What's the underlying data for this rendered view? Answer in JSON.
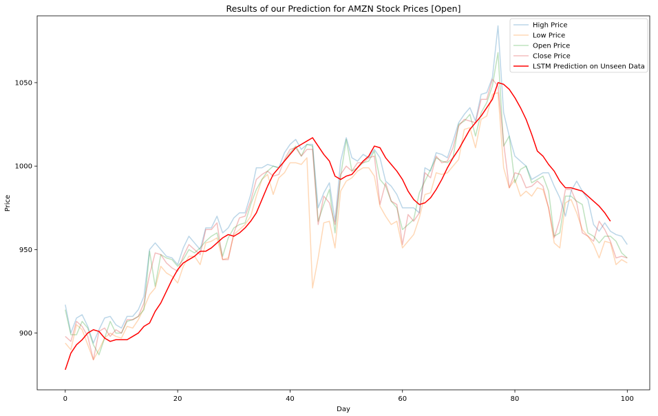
{
  "chart_data": {
    "type": "line",
    "title": "Results of our Prediction for AMZN Stock Prices [Open]",
    "xlabel": "Day",
    "ylabel": "Price",
    "xlim": [
      -5,
      104
    ],
    "ylim": [
      866,
      1090
    ],
    "xticks": [
      0,
      20,
      40,
      60,
      80,
      100
    ],
    "yticks": [
      900,
      950,
      1000,
      1050
    ],
    "grid": false,
    "legend_position": "top-right",
    "colors": {
      "high": "#1f77b4",
      "low": "#ff7f0e",
      "open": "#2ca02c",
      "close": "#d62728",
      "prediction": "#ff0000"
    },
    "series": [
      {
        "key": "high",
        "name": "High Price",
        "opacity": 0.3,
        "values": [
          917,
          900,
          909,
          911,
          904,
          894,
          902,
          909,
          910,
          905,
          903,
          910,
          910,
          914,
          922,
          950,
          954,
          950,
          946,
          945,
          941,
          951,
          958,
          954,
          950,
          963,
          963,
          970,
          960,
          963,
          969,
          972,
          972,
          983,
          999,
          999,
          1001,
          1000,
          999,
          1008,
          1013,
          1016,
          1010,
          1013,
          1013,
          975,
          984,
          990,
          967,
          1003,
          1017,
          1005,
          1003,
          1007,
          1005,
          1010,
          1005,
          991,
          988,
          983,
          975,
          975,
          975,
          972,
          999,
          997,
          1008,
          1007,
          1005,
          1015,
          1026,
          1031,
          1035,
          1027,
          1043,
          1044,
          1053,
          1084,
          1032,
          1018,
          1006,
          1003,
          1000,
          992,
          994,
          996,
          996,
          988,
          981,
          970,
          985,
          991,
          985,
          980,
          965,
          961,
          966,
          961,
          959,
          958,
          953
        ]
      },
      {
        "key": "low",
        "name": "Low Price",
        "opacity": 0.3,
        "values": [
          894,
          890,
          905,
          902,
          893,
          884,
          890,
          897,
          900,
          898,
          897,
          904,
          903,
          908,
          915,
          923,
          927,
          940,
          936,
          934,
          930,
          940,
          946,
          946,
          941,
          954,
          955,
          957,
          944,
          945,
          959,
          962,
          965,
          970,
          982,
          992,
          995,
          983,
          993,
          996,
          1002,
          1002,
          1001,
          1005,
          927,
          945,
          966,
          967,
          951,
          985,
          991,
          993,
          997,
          999,
          999,
          994,
          976,
          970,
          965,
          967,
          951,
          955,
          959,
          969,
          983,
          984,
          996,
          995,
          996,
          1000,
          1004,
          1022,
          1023,
          1011,
          1028,
          1030,
          1043,
          1044,
          999,
          987,
          992,
          982,
          985,
          982,
          987,
          986,
          975,
          954,
          951,
          978,
          980,
          972,
          962,
          958,
          953,
          945,
          955,
          954,
          941,
          944,
          942
        ]
      },
      {
        "key": "open",
        "name": "Open Price",
        "opacity": 0.3,
        "values": [
          914,
          899,
          899,
          907,
          903,
          893,
          887,
          897,
          907,
          900,
          900,
          907,
          908,
          910,
          914,
          949,
          928,
          947,
          945,
          944,
          940,
          944,
          950,
          948,
          951,
          955,
          958,
          960,
          946,
          957,
          963,
          965,
          966,
          977,
          986,
          992,
          997,
          1000,
          999,
          1003,
          1008,
          1012,
          1006,
          1013,
          1012,
          967,
          977,
          986,
          960,
          994,
          1016,
          997,
          999,
          1002,
          1003,
          1009,
          992,
          988,
          979,
          975,
          962,
          965,
          968,
          984,
          991,
          998,
          1005,
          1003,
          1002,
          1005,
          1025,
          1027,
          1031,
          1018,
          1032,
          1038,
          1048,
          1068,
          1012,
          1018,
          990,
          998,
          1000,
          990,
          992,
          994,
          985,
          958,
          960,
          982,
          982,
          979,
          977,
          960,
          958,
          954,
          958,
          958,
          955,
          948,
          945
        ]
      },
      {
        "key": "close",
        "name": "Close Price",
        "opacity": 0.3,
        "values": [
          898,
          895,
          907,
          904,
          898,
          884,
          901,
          903,
          898,
          902,
          900,
          908,
          908,
          910,
          918,
          935,
          948,
          947,
          942,
          939,
          937,
          946,
          953,
          950,
          947,
          962,
          962,
          966,
          944,
          944,
          960,
          969,
          970,
          979,
          992,
          995,
          997,
          994,
          995,
          1004,
          1010,
          1011,
          1006,
          1010,
          1010,
          965,
          982,
          978,
          965,
          995,
          1000,
          997,
          1002,
          1002,
          1005,
          1006,
          977,
          990,
          979,
          977,
          953,
          971,
          967,
          972,
          996,
          993,
          1006,
          1002,
          1003,
          1011,
          1024,
          1028,
          1027,
          1026,
          1040,
          1040,
          1052,
          1048,
          1014,
          987,
          996,
          995,
          987,
          988,
          991,
          988,
          975,
          957,
          968,
          986,
          986,
          978,
          960,
          958,
          955,
          967,
          962,
          955,
          945,
          946,
          945
        ]
      },
      {
        "key": "prediction",
        "name": "LSTM Prediction on Unseen Data",
        "opacity": 1,
        "values": [
          878,
          888,
          893,
          896,
          900,
          902,
          901,
          897,
          895,
          896,
          896,
          896,
          898,
          900,
          904,
          906,
          913,
          918,
          925,
          932,
          938,
          942,
          944,
          946,
          949,
          949,
          951,
          954,
          957,
          959,
          958,
          960,
          963,
          967,
          972,
          980,
          988,
          995,
          999,
          1003,
          1007,
          1011,
          1013,
          1015,
          1017,
          1012,
          1007,
          1003,
          994,
          992,
          994,
          995,
          999,
          1003,
          1006,
          1012,
          1011,
          1005,
          1001,
          997,
          992,
          985,
          980,
          977,
          978,
          981,
          986,
          992,
          999,
          1005,
          1010,
          1016,
          1022,
          1026,
          1030,
          1035,
          1040,
          1050,
          1049,
          1046,
          1041,
          1035,
          1028,
          1019,
          1009,
          1006,
          1001,
          997,
          991,
          987,
          987,
          986,
          985,
          982,
          979,
          976,
          972,
          967
        ]
      }
    ]
  }
}
